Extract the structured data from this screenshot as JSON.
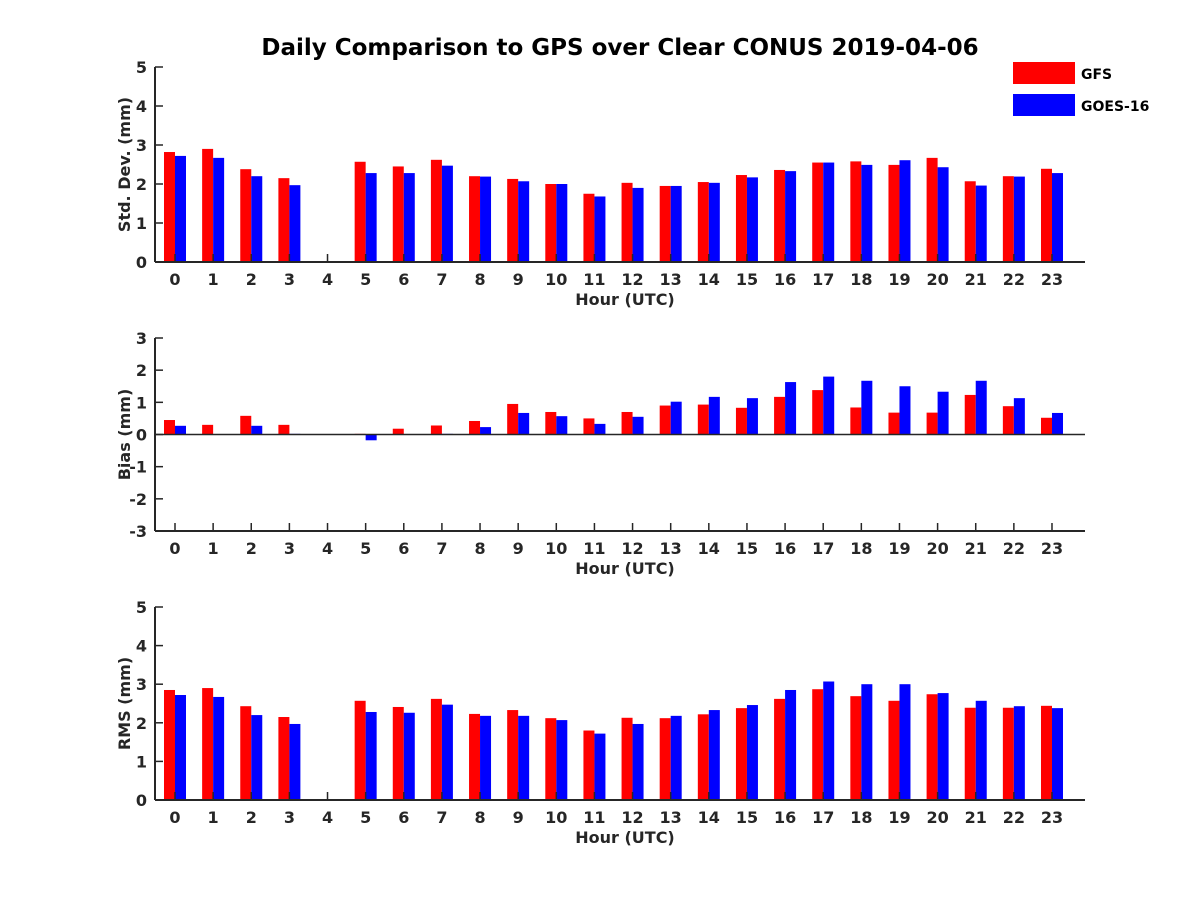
{
  "title": "Daily Comparison to GPS over Clear CONUS 2019-04-06",
  "colors": {
    "gfs": "#ff0000",
    "goes": "#0000ff",
    "axis": "#262626"
  },
  "legend": [
    {
      "label": "GFS",
      "color": "#ff0000"
    },
    {
      "label": "GOES-16",
      "color": "#0000ff"
    }
  ],
  "chart_data": [
    {
      "type": "bar",
      "title": "Daily Comparison to GPS over Clear CONUS 2019-04-06",
      "xlabel": "Hour (UTC)",
      "ylabel": "Std. Dev. (mm)",
      "ylim": [
        0,
        5
      ],
      "yticks": [
        "0",
        "1",
        "2",
        "3",
        "4",
        "5"
      ],
      "categories": [
        "0",
        "1",
        "2",
        "3",
        "4",
        "5",
        "6",
        "7",
        "8",
        "9",
        "10",
        "11",
        "12",
        "13",
        "14",
        "15",
        "16",
        "17",
        "18",
        "19",
        "20",
        "21",
        "22",
        "23"
      ],
      "series": [
        {
          "name": "GFS",
          "values": [
            2.82,
            2.9,
            2.38,
            2.15,
            null,
            2.57,
            2.45,
            2.62,
            2.2,
            2.13,
            2.0,
            1.75,
            2.03,
            1.95,
            2.05,
            2.23,
            2.36,
            2.55,
            2.58,
            2.49,
            2.67,
            2.07,
            2.2,
            2.39
          ]
        },
        {
          "name": "GOES-16",
          "values": [
            2.72,
            2.67,
            2.2,
            1.97,
            null,
            2.28,
            2.28,
            2.47,
            2.19,
            2.07,
            2.0,
            1.68,
            1.9,
            1.95,
            2.03,
            2.17,
            2.33,
            2.55,
            2.49,
            2.61,
            2.43,
            1.96,
            2.19,
            2.28
          ]
        }
      ]
    },
    {
      "type": "bar",
      "xlabel": "Hour (UTC)",
      "ylabel": "Bias (mm)",
      "ylim": [
        -3,
        3
      ],
      "yticks": [
        "-3",
        "-2",
        "-1",
        "0",
        "1",
        "2",
        "3"
      ],
      "categories": [
        "0",
        "1",
        "2",
        "3",
        "4",
        "5",
        "6",
        "7",
        "8",
        "9",
        "10",
        "11",
        "12",
        "13",
        "14",
        "15",
        "16",
        "17",
        "18",
        "19",
        "20",
        "21",
        "22",
        "23"
      ],
      "series": [
        {
          "name": "GFS",
          "values": [
            0.45,
            0.3,
            0.58,
            0.3,
            null,
            0.02,
            0.18,
            0.28,
            0.42,
            0.95,
            0.7,
            0.5,
            0.7,
            0.9,
            0.93,
            0.83,
            1.17,
            1.38,
            0.84,
            0.68,
            0.68,
            1.23,
            0.88,
            0.52
          ]
        },
        {
          "name": "GOES-16",
          "values": [
            0.27,
            null,
            0.27,
            0.02,
            null,
            -0.18,
            null,
            0.02,
            0.23,
            0.67,
            0.57,
            0.33,
            0.55,
            1.02,
            1.17,
            1.13,
            1.63,
            1.8,
            1.67,
            1.5,
            1.33,
            1.67,
            1.13,
            0.67
          ]
        }
      ]
    },
    {
      "type": "bar",
      "xlabel": "Hour (UTC)",
      "ylabel": "RMS (mm)",
      "ylim": [
        0,
        5
      ],
      "yticks": [
        "0",
        "1",
        "2",
        "3",
        "4",
        "5"
      ],
      "categories": [
        "0",
        "1",
        "2",
        "3",
        "4",
        "5",
        "6",
        "7",
        "8",
        "9",
        "10",
        "11",
        "12",
        "13",
        "14",
        "15",
        "16",
        "17",
        "18",
        "19",
        "20",
        "21",
        "22",
        "23"
      ],
      "series": [
        {
          "name": "GFS",
          "values": [
            2.85,
            2.9,
            2.43,
            2.15,
            null,
            2.57,
            2.41,
            2.62,
            2.23,
            2.33,
            2.12,
            1.8,
            2.13,
            2.12,
            2.22,
            2.38,
            2.62,
            2.87,
            2.69,
            2.57,
            2.74,
            2.39,
            2.39,
            2.44
          ]
        },
        {
          "name": "GOES-16",
          "values": [
            2.72,
            2.67,
            2.2,
            1.97,
            null,
            2.28,
            2.26,
            2.47,
            2.18,
            2.18,
            2.07,
            1.72,
            1.97,
            2.18,
            2.33,
            2.46,
            2.85,
            3.07,
            3.0,
            3.0,
            2.77,
            2.57,
            2.43,
            2.38
          ]
        }
      ]
    }
  ]
}
